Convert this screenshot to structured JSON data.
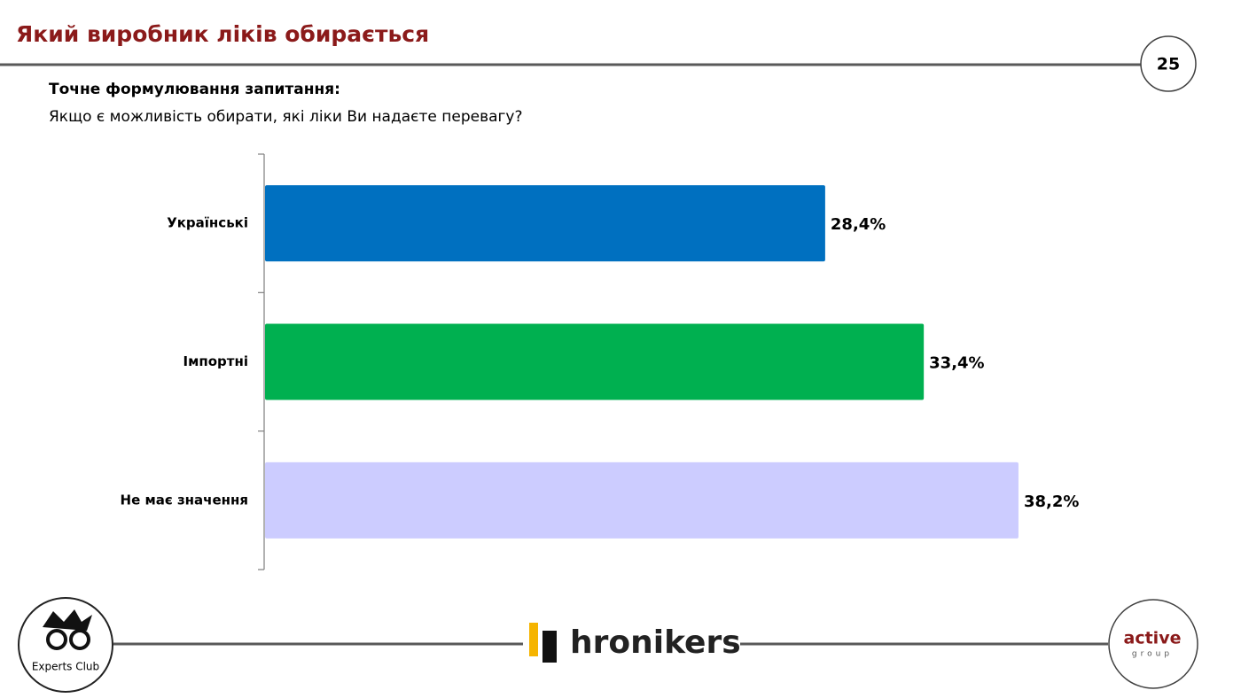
{
  "header": {
    "title": "Який виробник ліків обирається",
    "page_number": "25",
    "question_heading": "Точне формулювання запитання:",
    "question": "Якщо є можливість обирати, які ліки Ви надаєте перевагу?"
  },
  "chart_data": {
    "type": "hbar",
    "categories": [
      "Українські",
      "Імпортні",
      "Не має значення"
    ],
    "values": [
      28.4,
      33.4,
      38.2
    ],
    "value_labels": [
      "28,4%",
      "33,4%",
      "38,2%"
    ],
    "colors": [
      "#0070c0",
      "#00b050",
      "#ccccff"
    ]
  },
  "footer": {
    "left_logo": "Experts Club",
    "center_logo": "hronikers",
    "right_logo": "active",
    "right_logo_sub": "group"
  }
}
